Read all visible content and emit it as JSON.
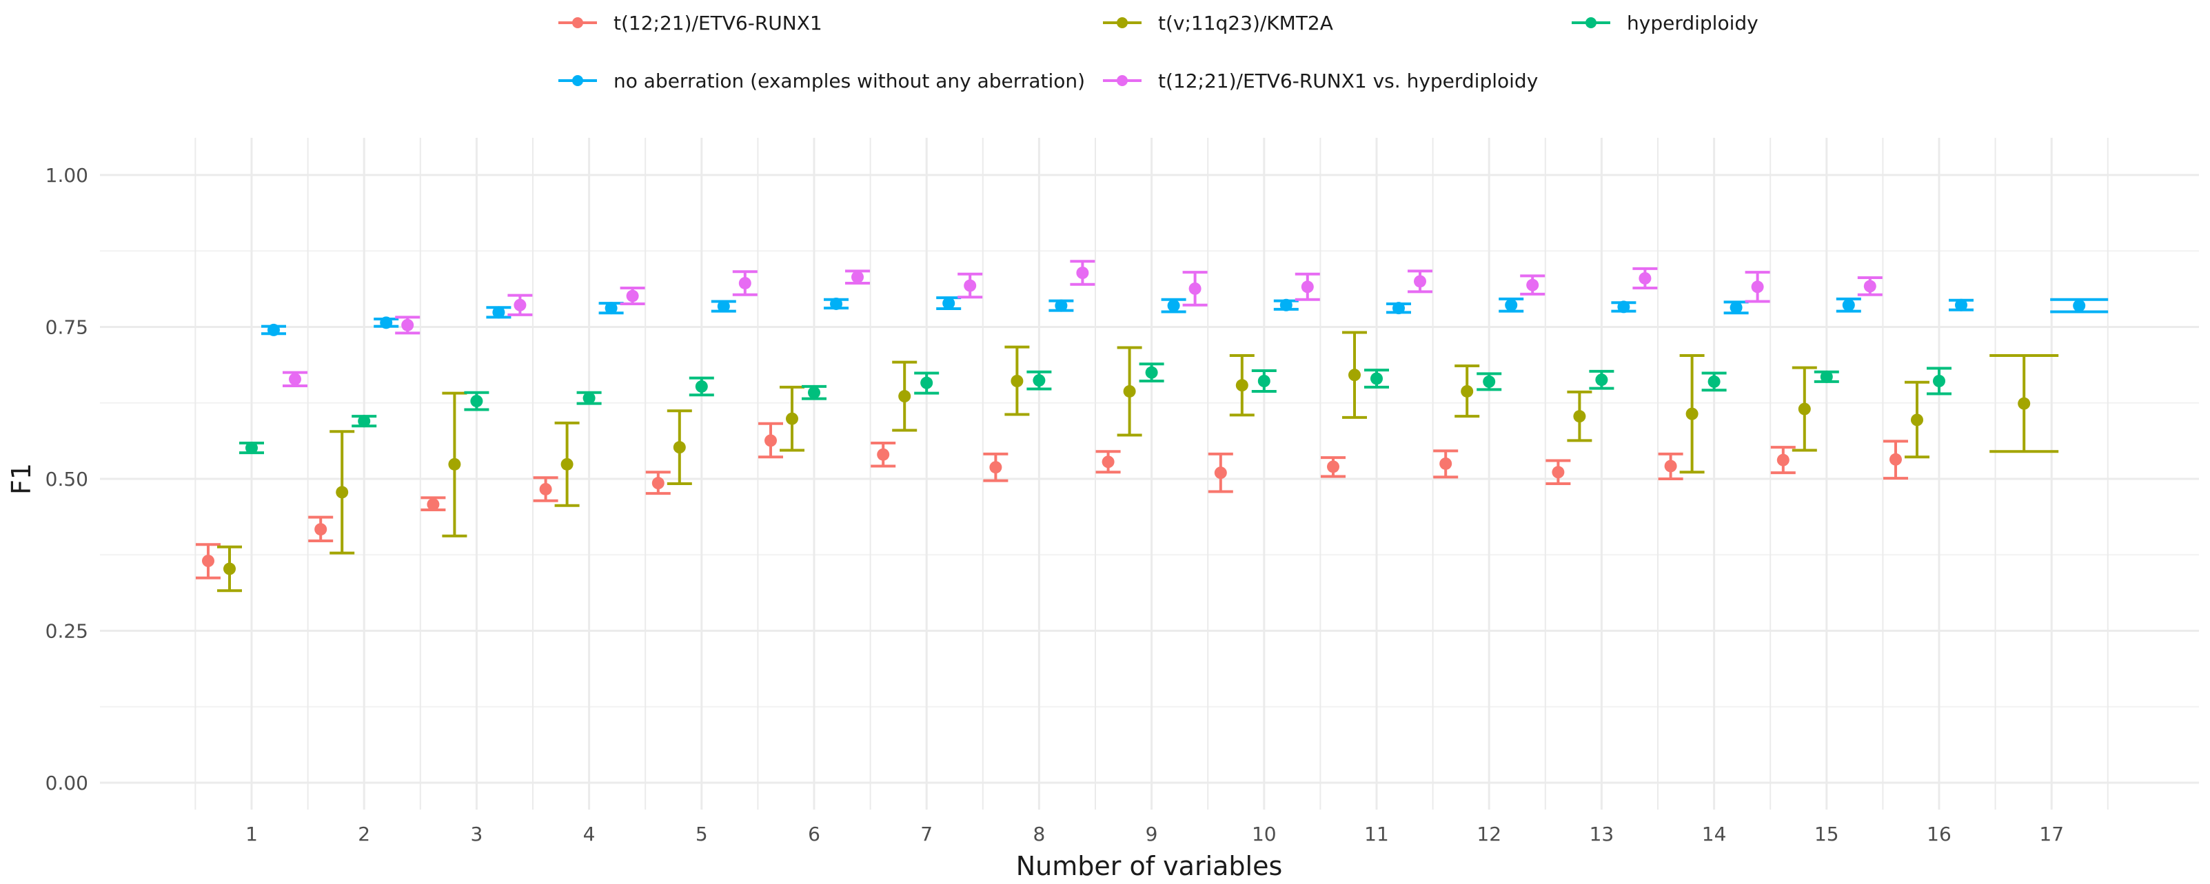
{
  "chart_data": {
    "type": "scatter",
    "title": "",
    "xlabel": "Number of variables",
    "ylabel": "F1",
    "ylim": [
      0,
      1
    ],
    "yticks": [
      "0.00",
      "0.25",
      "0.50",
      "0.75",
      "1.00"
    ],
    "ytick_values": [
      0,
      0.25,
      0.5,
      0.75,
      1.0
    ],
    "categories": [
      "1",
      "2",
      "3",
      "4",
      "5",
      "6",
      "7",
      "8",
      "9",
      "10",
      "11",
      "12",
      "13",
      "14",
      "15",
      "16",
      "17"
    ],
    "grid": true,
    "legend_position": "top",
    "series": [
      {
        "name": "t(12;21)/ETV6-RUNX1",
        "color": "#F8766D",
        "values": [
          0.365,
          0.417,
          0.458,
          0.483,
          0.493,
          0.563,
          0.54,
          0.519,
          0.528,
          0.51,
          0.52,
          0.525,
          0.511,
          0.521,
          0.531,
          0.532,
          null
        ],
        "lower": [
          0.337,
          0.398,
          0.449,
          0.464,
          0.476,
          0.536,
          0.521,
          0.497,
          0.511,
          0.479,
          0.504,
          0.503,
          0.492,
          0.5,
          0.51,
          0.501,
          null
        ],
        "upper": [
          0.392,
          0.437,
          0.469,
          0.502,
          0.511,
          0.591,
          0.559,
          0.541,
          0.545,
          0.541,
          0.535,
          0.546,
          0.53,
          0.541,
          0.552,
          0.562,
          null
        ]
      },
      {
        "name": "t(v;11q23)/KMT2A",
        "color": "#A3A500",
        "values": [
          0.352,
          0.478,
          0.524,
          0.524,
          0.552,
          0.599,
          0.636,
          0.661,
          0.644,
          0.654,
          0.671,
          0.644,
          0.603,
          0.607,
          0.615,
          0.597,
          0.624
        ],
        "lower": [
          0.316,
          0.378,
          0.406,
          0.456,
          0.492,
          0.547,
          0.58,
          0.606,
          0.572,
          0.605,
          0.601,
          0.603,
          0.563,
          0.511,
          0.547,
          0.536,
          0.545
        ],
        "upper": [
          0.388,
          0.578,
          0.641,
          0.592,
          0.612,
          0.651,
          0.692,
          0.717,
          0.716,
          0.703,
          0.741,
          0.686,
          0.643,
          0.703,
          0.683,
          0.659,
          0.703
        ]
      },
      {
        "name": "hyperdiploidy",
        "color": "#00BF7D",
        "values": [
          0.551,
          0.595,
          0.628,
          0.633,
          0.652,
          0.642,
          0.658,
          0.662,
          0.675,
          0.661,
          0.665,
          0.66,
          0.663,
          0.66,
          0.668,
          0.661,
          null
        ],
        "lower": [
          0.543,
          0.587,
          0.614,
          0.624,
          0.638,
          0.632,
          0.641,
          0.648,
          0.661,
          0.644,
          0.651,
          0.647,
          0.649,
          0.646,
          0.66,
          0.64,
          null
        ],
        "upper": [
          0.559,
          0.603,
          0.642,
          0.642,
          0.666,
          0.652,
          0.674,
          0.676,
          0.689,
          0.678,
          0.679,
          0.673,
          0.677,
          0.674,
          0.676,
          0.682,
          null
        ]
      },
      {
        "name": "no aberration (examples without any aberration)",
        "color": "#00B0F6",
        "values": [
          0.745,
          0.757,
          0.774,
          0.781,
          0.784,
          0.788,
          0.789,
          0.785,
          0.785,
          0.786,
          0.781,
          0.786,
          0.783,
          0.782,
          0.786,
          0.786,
          0.785
        ],
        "lower": [
          0.739,
          0.751,
          0.766,
          0.773,
          0.776,
          0.781,
          0.78,
          0.777,
          0.775,
          0.779,
          0.774,
          0.776,
          0.776,
          0.773,
          0.776,
          0.778,
          0.775
        ],
        "upper": [
          0.751,
          0.763,
          0.782,
          0.789,
          0.792,
          0.795,
          0.798,
          0.793,
          0.795,
          0.793,
          0.788,
          0.796,
          0.79,
          0.791,
          0.796,
          0.794,
          0.795
        ]
      },
      {
        "name": "t(12;21)/ETV6-RUNX1 vs. hyperdiploidy",
        "color": "#E76BF3",
        "values": [
          0.664,
          0.753,
          0.786,
          0.801,
          0.822,
          0.832,
          0.818,
          0.839,
          0.813,
          0.816,
          0.825,
          0.819,
          0.83,
          0.816,
          0.817,
          null,
          null
        ],
        "lower": [
          0.653,
          0.74,
          0.77,
          0.788,
          0.803,
          0.822,
          0.799,
          0.82,
          0.786,
          0.795,
          0.808,
          0.804,
          0.814,
          0.792,
          0.803,
          null,
          null
        ],
        "upper": [
          0.675,
          0.766,
          0.802,
          0.814,
          0.841,
          0.842,
          0.837,
          0.858,
          0.84,
          0.837,
          0.842,
          0.834,
          0.846,
          0.84,
          0.831,
          null,
          null
        ]
      }
    ]
  }
}
